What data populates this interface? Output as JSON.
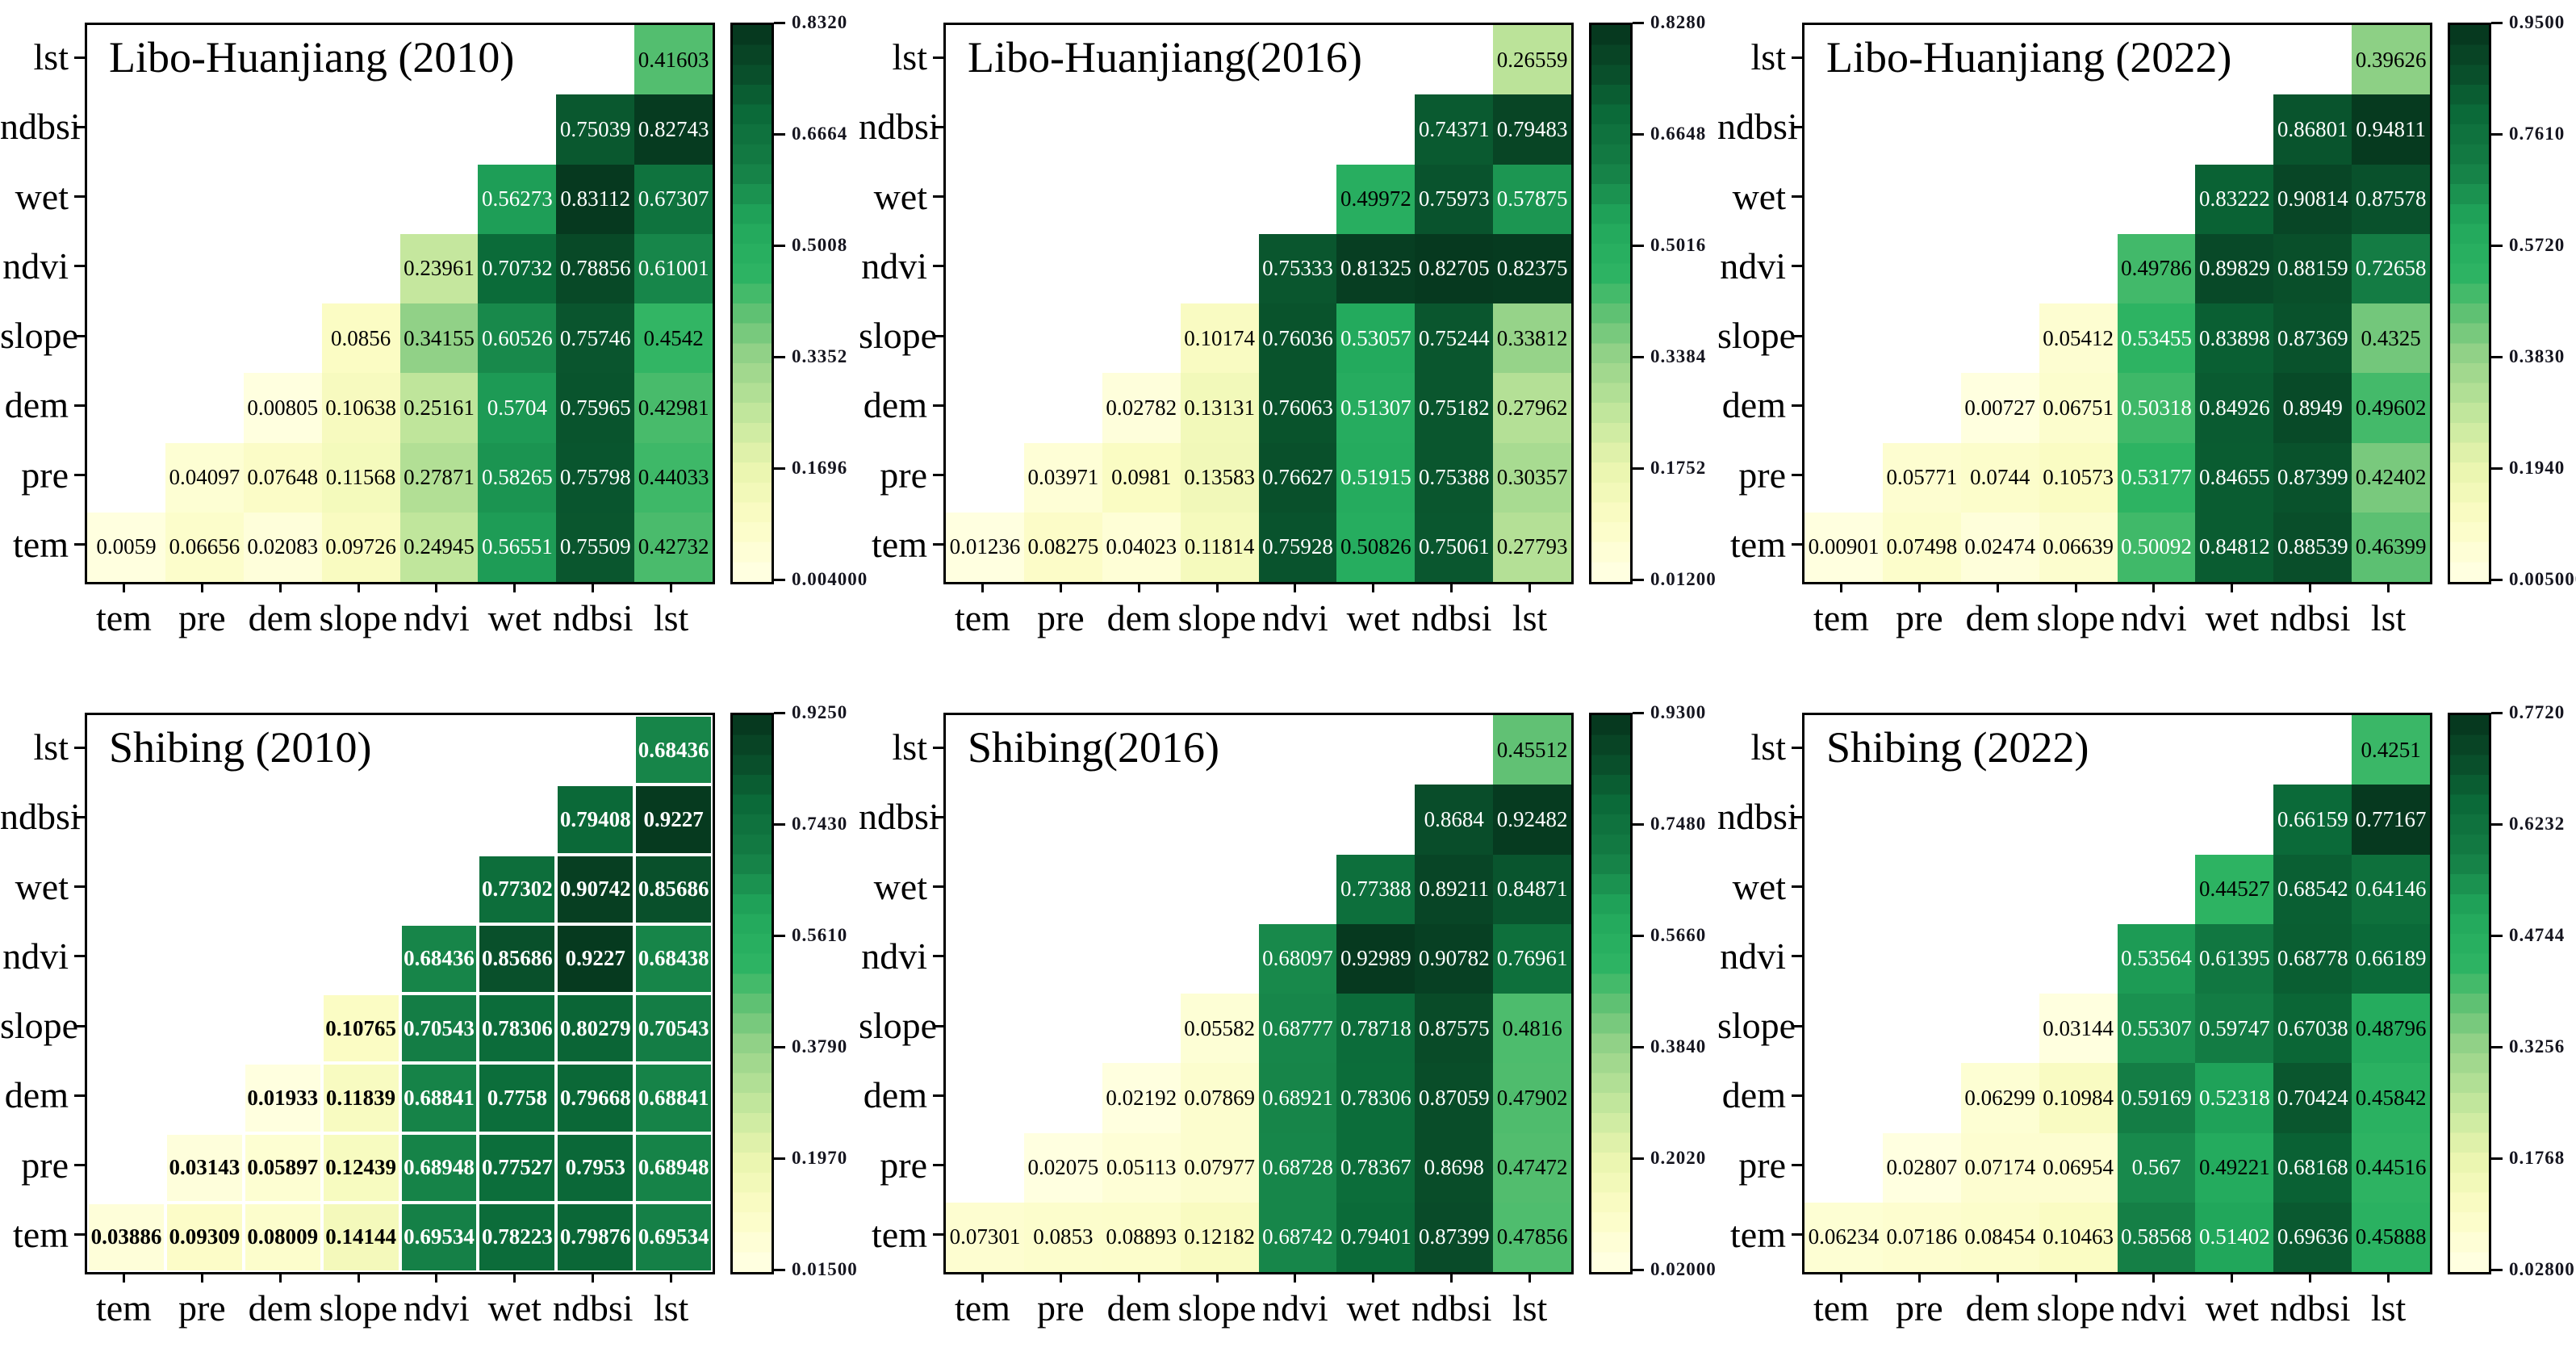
{
  "figure": {
    "background": "#ffffff",
    "colormap": "YlGn",
    "layout": "2 rows x 3 columns of triangular correlation heatmaps, each with vertical colorbar on the right"
  },
  "chart_data": [
    {
      "type": "heatmap",
      "title": "Libo-Huanjiang (2010)",
      "x_labels": [
        "tem",
        "pre",
        "dem",
        "slope",
        "ndvi",
        "wet",
        "ndbsi",
        "lst"
      ],
      "y_labels": [
        "lst",
        "ndbsi",
        "wet",
        "ndvi",
        "slope",
        "dem",
        "pre",
        "tem"
      ],
      "vmin": 0.004,
      "vmax": 0.832,
      "colorbar_ticks": [
        "0.8320",
        "0.6664",
        "0.5008",
        "0.3352",
        "0.1696",
        "0.004000"
      ],
      "white_gridlines": false,
      "bold_values": false,
      "text_overrides": {},
      "rows": [
        [
          null,
          null,
          null,
          null,
          null,
          null,
          null,
          "0.41603"
        ],
        [
          null,
          null,
          null,
          null,
          null,
          null,
          "0.75039",
          "0.82743"
        ],
        [
          null,
          null,
          null,
          null,
          null,
          "0.56273",
          "0.83112",
          "0.67307"
        ],
        [
          null,
          null,
          null,
          null,
          "0.23961",
          "0.70732",
          "0.78856",
          "0.61001"
        ],
        [
          null,
          null,
          null,
          "0.0856",
          "0.34155",
          "0.60526",
          "0.75746",
          "0.4542"
        ],
        [
          null,
          null,
          "0.00805",
          "0.10638",
          "0.25161",
          "0.5704",
          "0.75965",
          "0.42981"
        ],
        [
          null,
          "0.04097",
          "0.07648",
          "0.11568",
          "0.27871",
          "0.58265",
          "0.75798",
          "0.44033"
        ],
        [
          "0.0059",
          "0.06656",
          "0.02083",
          "0.09726",
          "0.24945",
          "0.56551",
          "0.75509",
          "0.42732"
        ]
      ]
    },
    {
      "type": "heatmap",
      "title": "Libo-Huanjiang(2016)",
      "x_labels": [
        "tem",
        "pre",
        "dem",
        "slope",
        "ndvi",
        "wet",
        "ndbsi",
        "lst"
      ],
      "y_labels": [
        "lst",
        "ndbsi",
        "wet",
        "ndvi",
        "slope",
        "dem",
        "pre",
        "tem"
      ],
      "vmin": 0.012,
      "vmax": 0.828,
      "colorbar_ticks": [
        "0.8280",
        "0.6648",
        "0.5016",
        "0.3384",
        "0.1752",
        "0.01200"
      ],
      "white_gridlines": false,
      "bold_values": false,
      "text_overrides": {
        "0.50826": "#000000"
      },
      "rows": [
        [
          null,
          null,
          null,
          null,
          null,
          null,
          null,
          "0.26559"
        ],
        [
          null,
          null,
          null,
          null,
          null,
          null,
          "0.74371",
          "0.79483"
        ],
        [
          null,
          null,
          null,
          null,
          null,
          "0.49972",
          "0.75973",
          "0.57875"
        ],
        [
          null,
          null,
          null,
          null,
          "0.75333",
          "0.81325",
          "0.82705",
          "0.82375"
        ],
        [
          null,
          null,
          null,
          "0.10174",
          "0.76036",
          "0.53057",
          "0.75244",
          "0.33812"
        ],
        [
          null,
          null,
          "0.02782",
          "0.13131",
          "0.76063",
          "0.51307",
          "0.75182",
          "0.27962"
        ],
        [
          null,
          "0.03971",
          "0.0981",
          "0.13583",
          "0.76627",
          "0.51915",
          "0.75388",
          "0.30357"
        ],
        [
          "0.01236",
          "0.08275",
          "0.04023",
          "0.11814",
          "0.75928",
          "0.50826",
          "0.75061",
          "0.27793"
        ]
      ]
    },
    {
      "type": "heatmap",
      "title": "Libo-Huanjiang (2022)",
      "x_labels": [
        "tem",
        "pre",
        "dem",
        "slope",
        "ndvi",
        "wet",
        "ndbsi",
        "lst"
      ],
      "y_labels": [
        "lst",
        "ndbsi",
        "wet",
        "ndvi",
        "slope",
        "dem",
        "pre",
        "tem"
      ],
      "vmin": 0.005,
      "vmax": 0.95,
      "colorbar_ticks": [
        "0.9500",
        "0.7610",
        "0.5720",
        "0.3830",
        "0.1940",
        "0.005000"
      ],
      "white_gridlines": false,
      "bold_values": false,
      "text_overrides": {},
      "rows": [
        [
          null,
          null,
          null,
          null,
          null,
          null,
          null,
          "0.39626"
        ],
        [
          null,
          null,
          null,
          null,
          null,
          null,
          "0.86801",
          "0.94811"
        ],
        [
          null,
          null,
          null,
          null,
          null,
          "0.83222",
          "0.90814",
          "0.87578"
        ],
        [
          null,
          null,
          null,
          null,
          "0.49786",
          "0.89829",
          "0.88159",
          "0.72658"
        ],
        [
          null,
          null,
          null,
          "0.05412",
          "0.53455",
          "0.83898",
          "0.87369",
          "0.4325"
        ],
        [
          null,
          null,
          "0.00727",
          "0.06751",
          "0.50318",
          "0.84926",
          "0.8949",
          "0.49602"
        ],
        [
          null,
          "0.05771",
          "0.0744",
          "0.10573",
          "0.53177",
          "0.84655",
          "0.87399",
          "0.42402"
        ],
        [
          "0.00901",
          "0.07498",
          "0.02474",
          "0.06639",
          "0.50092",
          "0.84812",
          "0.88539",
          "0.46399"
        ]
      ]
    },
    {
      "type": "heatmap",
      "title": "Shibing (2010)",
      "x_labels": [
        "tem",
        "pre",
        "dem",
        "slope",
        "ndvi",
        "wet",
        "ndbsi",
        "lst"
      ],
      "y_labels": [
        "lst",
        "ndbsi",
        "wet",
        "ndvi",
        "slope",
        "dem",
        "pre",
        "tem"
      ],
      "vmin": 0.015,
      "vmax": 0.925,
      "colorbar_ticks": [
        "0.9250",
        "0.7430",
        "0.5610",
        "0.3790",
        "0.1970",
        "0.01500"
      ],
      "white_gridlines": true,
      "bold_values": true,
      "text_overrides": {},
      "rows": [
        [
          null,
          null,
          null,
          null,
          null,
          null,
          null,
          "0.68436"
        ],
        [
          null,
          null,
          null,
          null,
          null,
          null,
          "0.79408",
          "0.9227"
        ],
        [
          null,
          null,
          null,
          null,
          null,
          "0.77302",
          "0.90742",
          "0.85686"
        ],
        [
          null,
          null,
          null,
          null,
          "0.68436",
          "0.85686",
          "0.9227",
          "0.68438"
        ],
        [
          null,
          null,
          null,
          "0.10765",
          "0.70543",
          "0.78306",
          "0.80279",
          "0.70543"
        ],
        [
          null,
          null,
          "0.01933",
          "0.11839",
          "0.68841",
          "0.7758",
          "0.79668",
          "0.68841"
        ],
        [
          null,
          "0.03143",
          "0.05897",
          "0.12439",
          "0.68948",
          "0.77527",
          "0.7953",
          "0.68948"
        ],
        [
          "0.03886",
          "0.09309",
          "0.08009",
          "0.14144",
          "0.69534",
          "0.78223",
          "0.79876",
          "0.69534"
        ]
      ]
    },
    {
      "type": "heatmap",
      "title": "Shibing(2016)",
      "x_labels": [
        "tem",
        "pre",
        "dem",
        "slope",
        "ndvi",
        "wet",
        "ndbsi",
        "lst"
      ],
      "y_labels": [
        "lst",
        "ndbsi",
        "wet",
        "ndvi",
        "slope",
        "dem",
        "pre",
        "tem"
      ],
      "vmin": 0.02,
      "vmax": 0.93,
      "colorbar_ticks": [
        "0.9300",
        "0.7480",
        "0.5660",
        "0.3840",
        "0.2020",
        "0.02000"
      ],
      "white_gridlines": false,
      "bold_values": false,
      "text_overrides": {},
      "rows": [
        [
          null,
          null,
          null,
          null,
          null,
          null,
          null,
          "0.45512"
        ],
        [
          null,
          null,
          null,
          null,
          null,
          null,
          "0.8684",
          "0.92482"
        ],
        [
          null,
          null,
          null,
          null,
          null,
          "0.77388",
          "0.89211",
          "0.84871"
        ],
        [
          null,
          null,
          null,
          null,
          "0.68097",
          "0.92989",
          "0.90782",
          "0.76961"
        ],
        [
          null,
          null,
          null,
          "0.05582",
          "0.68777",
          "0.78718",
          "0.87575",
          "0.4816"
        ],
        [
          null,
          null,
          "0.02192",
          "0.07869",
          "0.68921",
          "0.78306",
          "0.87059",
          "0.47902"
        ],
        [
          null,
          "0.02075",
          "0.05113",
          "0.07977",
          "0.68728",
          "0.78367",
          "0.8698",
          "0.47472"
        ],
        [
          "0.07301",
          "0.0853",
          "0.08893",
          "0.12182",
          "0.68742",
          "0.79401",
          "0.87399",
          "0.47856"
        ]
      ]
    },
    {
      "type": "heatmap",
      "title": "Shibing (2022)",
      "x_labels": [
        "tem",
        "pre",
        "dem",
        "slope",
        "ndvi",
        "wet",
        "ndbsi",
        "lst"
      ],
      "y_labels": [
        "lst",
        "ndbsi",
        "wet",
        "ndvi",
        "slope",
        "dem",
        "pre",
        "tem"
      ],
      "vmin": 0.028,
      "vmax": 0.772,
      "colorbar_ticks": [
        "0.7720",
        "0.6232",
        "0.4744",
        "0.3256",
        "0.1768",
        "0.02800"
      ],
      "white_gridlines": false,
      "bold_values": false,
      "text_overrides": {},
      "rows": [
        [
          null,
          null,
          null,
          null,
          null,
          null,
          null,
          "0.4251"
        ],
        [
          null,
          null,
          null,
          null,
          null,
          null,
          "0.66159",
          "0.77167"
        ],
        [
          null,
          null,
          null,
          null,
          null,
          "0.44527",
          "0.68542",
          "0.64146"
        ],
        [
          null,
          null,
          null,
          null,
          "0.53564",
          "0.61395",
          "0.68778",
          "0.66189"
        ],
        [
          null,
          null,
          null,
          "0.03144",
          "0.55307",
          "0.59747",
          "0.67038",
          "0.48796"
        ],
        [
          null,
          null,
          "0.06299",
          "0.10984",
          "0.59169",
          "0.52318",
          "0.70424",
          "0.45842"
        ],
        [
          null,
          "0.02807",
          "0.07174",
          "0.06954",
          "0.567",
          "0.49221",
          "0.68168",
          "0.44516"
        ],
        [
          "0.06234",
          "0.07186",
          "0.08454",
          "0.10463",
          "0.58568",
          "0.51402",
          "0.69636",
          "0.45888"
        ]
      ]
    }
  ]
}
